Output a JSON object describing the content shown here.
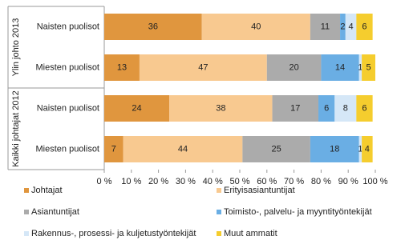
{
  "chart_data": {
    "type": "stacked-bar-horizontal",
    "groups": [
      "Ylin johto 2013",
      "Kaikki johtajat 2012"
    ],
    "categories": [
      "Naisten puolisot",
      "Miesten puolisot",
      "Naisten puolisot",
      "Miesten puolisot"
    ],
    "series": [
      {
        "name": "Johtajat",
        "color": "#e0963e",
        "values": [
          36,
          13,
          24,
          7
        ]
      },
      {
        "name": "Erityisasiantuntijat",
        "color": "#f8c990",
        "values": [
          40,
          47,
          38,
          44
        ]
      },
      {
        "name": "Asiantuntijat",
        "color": "#ababab",
        "values": [
          11,
          20,
          17,
          25
        ]
      },
      {
        "name": "Toimisto-, palvelu- ja myyntityöntekijät",
        "color": "#6aaee4",
        "values": [
          2,
          14,
          6,
          18
        ]
      },
      {
        "name": "Rakennus-, prosessi- ja kuljetustyöntekijät",
        "color": "#d5e7f7",
        "values": [
          4,
          1,
          8,
          1
        ]
      },
      {
        "name": "Muut ammatit",
        "color": "#f5cd2e",
        "values": [
          6,
          5,
          6,
          4
        ]
      }
    ],
    "xlim": [
      0,
      100
    ],
    "xticks": [
      {
        "value": 0,
        "label": "0 %"
      },
      {
        "value": 10,
        "label": "10 %"
      },
      {
        "value": 20,
        "label": "20 %"
      },
      {
        "value": 30,
        "label": "30 %"
      },
      {
        "value": 40,
        "label": "40 %"
      },
      {
        "value": 50,
        "label": "50 %"
      },
      {
        "value": 60,
        "label": "60 %"
      },
      {
        "value": 70,
        "label": "70 %"
      },
      {
        "value": 80,
        "label": "80 %"
      },
      {
        "value": 90,
        "label": "90 %"
      },
      {
        "value": 100,
        "label": "100 %"
      }
    ]
  }
}
